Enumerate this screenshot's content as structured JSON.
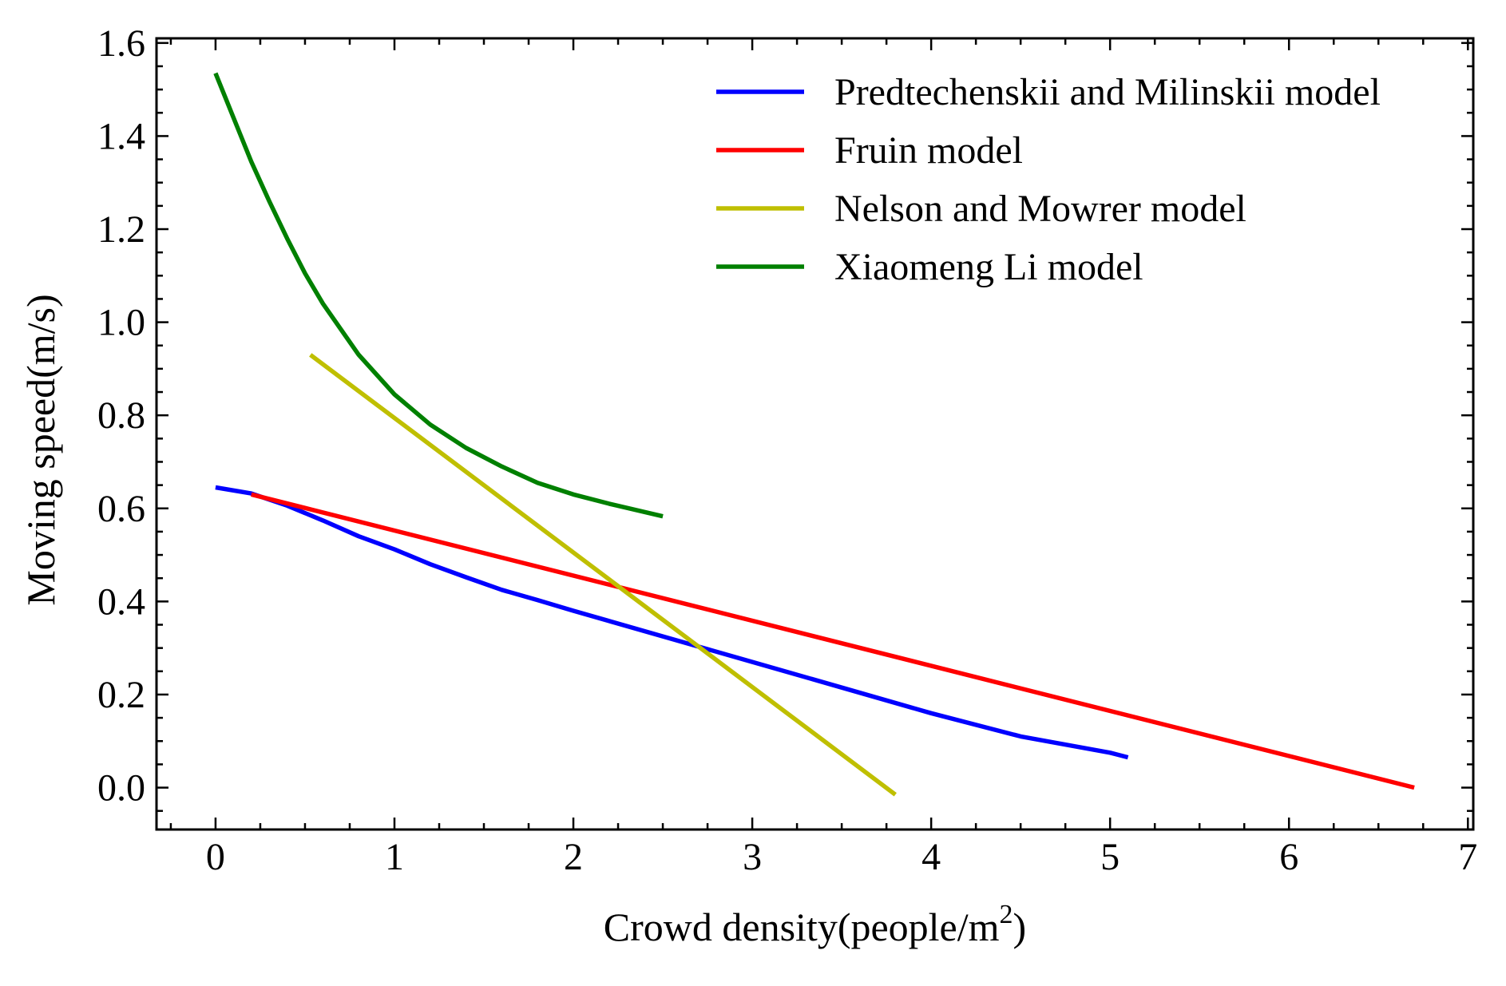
{
  "chart_data": {
    "type": "line",
    "title": "",
    "xlabel": "Crowd density(people/m",
    "xlabel_superscript": "2",
    "xlabel_suffix": ")",
    "ylabel": "Moving speed(m/s)",
    "xlim": [
      -0.33,
      7.03
    ],
    "ylim": [
      -0.09,
      1.61
    ],
    "xticks": [
      0,
      1,
      2,
      3,
      4,
      5,
      6,
      7
    ],
    "xtick_labels": [
      "0",
      "1",
      "2",
      "3",
      "4",
      "5",
      "6",
      "7"
    ],
    "yticks": [
      0.0,
      0.2,
      0.4,
      0.6,
      0.8,
      1.0,
      1.2,
      1.4,
      1.6
    ],
    "ytick_labels": [
      "0.0",
      "0.2",
      "0.4",
      "0.6",
      "0.8",
      "1.0",
      "1.2",
      "1.4",
      "1.6"
    ],
    "legend_position": "top-right",
    "series": [
      {
        "name": "Predtechenskii and Milinskii model",
        "color": "#0000ff",
        "x": [
          0,
          0.2,
          0.4,
          0.6,
          0.8,
          1.0,
          1.2,
          1.4,
          1.6,
          1.8,
          2.0,
          2.5,
          3.0,
          3.5,
          4.0,
          4.5,
          5.0,
          5.1
        ],
        "y": [
          0.645,
          0.632,
          0.606,
          0.574,
          0.54,
          0.512,
          0.48,
          0.452,
          0.425,
          0.403,
          0.38,
          0.325,
          0.27,
          0.215,
          0.16,
          0.11,
          0.075,
          0.065
        ]
      },
      {
        "name": "Fruin model",
        "color": "#ff0000",
        "x": [
          0.2,
          6.7
        ],
        "y": [
          0.63,
          0.0
        ]
      },
      {
        "name": "Nelson and Mowrer model",
        "color": "#bfbf00",
        "x": [
          0.53,
          3.8
        ],
        "y": [
          0.93,
          -0.015
        ]
      },
      {
        "name": "Xiaomeng Li model",
        "color": "#008000",
        "x": [
          0,
          0.1,
          0.2,
          0.3,
          0.4,
          0.5,
          0.6,
          0.8,
          1.0,
          1.2,
          1.4,
          1.6,
          1.8,
          2.0,
          2.2,
          2.5
        ],
        "y": [
          1.535,
          1.44,
          1.345,
          1.26,
          1.18,
          1.105,
          1.04,
          0.93,
          0.845,
          0.78,
          0.73,
          0.69,
          0.655,
          0.63,
          0.61,
          0.583
        ]
      }
    ]
  }
}
